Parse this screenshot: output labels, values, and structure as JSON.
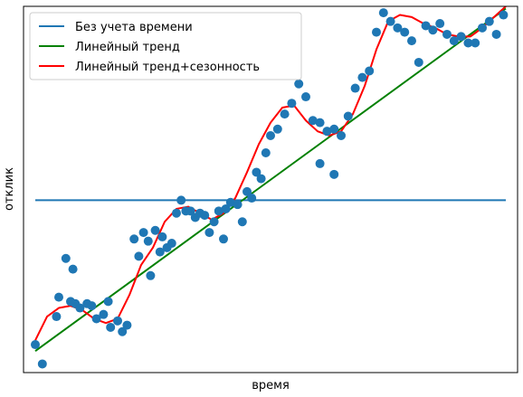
{
  "chart_data": {
    "type": "scatter",
    "xlabel": "время",
    "ylabel": "отклик",
    "xlim": [
      -0.5,
      20.5
    ],
    "ylim": [
      -1,
      16
    ],
    "xticks": false,
    "yticks": false,
    "legend_placement": "top-left",
    "colors": {
      "points": "#1f77b4",
      "baseline": "#1f77b4",
      "linear": "#008000",
      "seasonal": "#ff0000"
    },
    "series": [
      {
        "name": "Без учета времени",
        "type": "line",
        "x": [
          0,
          20
        ],
        "y": [
          7.0,
          7.0
        ]
      },
      {
        "name": "Линейный тренд",
        "type": "line",
        "x": [
          0,
          20
        ],
        "y": [
          0.0,
          15.9
        ]
      },
      {
        "name": "Линейный тренд+сезонность",
        "type": "line",
        "x": [
          0.0,
          0.5,
          1.0,
          1.5,
          2.0,
          2.5,
          3.0,
          3.5,
          4.0,
          4.5,
          5.0,
          5.5,
          6.0,
          6.5,
          7.0,
          7.5,
          8.0,
          8.5,
          9.0,
          9.5,
          10.0,
          10.5,
          11.0,
          11.5,
          12.0,
          12.5,
          13.0,
          13.5,
          14.0,
          14.5,
          15.0,
          15.5,
          16.0,
          16.5,
          17.0,
          17.5,
          18.0,
          18.5,
          19.0,
          19.5,
          20.0
        ],
        "y": [
          0.5,
          1.6,
          2.0,
          2.1,
          1.9,
          1.5,
          1.3,
          1.5,
          2.6,
          4.0,
          4.8,
          6.0,
          6.6,
          6.7,
          6.4,
          6.1,
          6.4,
          7.1,
          8.3,
          9.6,
          10.6,
          11.3,
          11.4,
          10.7,
          10.2,
          10.0,
          10.2,
          11.0,
          12.3,
          14.0,
          15.3,
          15.6,
          15.5,
          15.2,
          15.0,
          14.7,
          14.6,
          14.6,
          15.0,
          15.5,
          16.0
        ]
      },
      {
        "name": "",
        "type": "scatter",
        "x": [
          0.0,
          0.3,
          0.9,
          1.0,
          1.3,
          1.6,
          1.7,
          1.5,
          1.9,
          2.2,
          2.4,
          2.6,
          2.9,
          3.1,
          3.2,
          3.5,
          3.7,
          3.9,
          4.2,
          4.4,
          4.6,
          4.8,
          4.9,
          5.1,
          5.4,
          5.6,
          5.8,
          6.0,
          6.2,
          6.4,
          6.6,
          6.8,
          7.0,
          7.2,
          7.4,
          7.6,
          7.8,
          8.0,
          8.1,
          8.3,
          8.6,
          8.8,
          9.0,
          9.2,
          9.4,
          9.6,
          9.8,
          10.0,
          10.3,
          10.6,
          10.9,
          11.2,
          11.5,
          11.8,
          12.1,
          12.4,
          12.7,
          13.0,
          13.3,
          13.6,
          13.9,
          14.2,
          14.5,
          14.8,
          15.1,
          15.4,
          15.7,
          16.0,
          16.3,
          16.6,
          16.9,
          17.2,
          17.5,
          17.8,
          18.1,
          18.4,
          18.7,
          19.0,
          19.3,
          19.6,
          19.9,
          12.1,
          12.7,
          5.3
        ],
        "y": [
          0.3,
          -0.6,
          1.6,
          2.5,
          4.3,
          3.8,
          2.2,
          2.3,
          2.0,
          2.2,
          2.1,
          1.5,
          1.7,
          2.3,
          1.1,
          1.4,
          0.9,
          1.2,
          5.2,
          4.4,
          5.5,
          5.1,
          3.5,
          5.6,
          5.3,
          4.8,
          5.0,
          6.4,
          7.0,
          6.5,
          6.5,
          6.2,
          6.4,
          6.3,
          5.5,
          6.0,
          6.5,
          5.2,
          6.6,
          6.9,
          6.8,
          6.0,
          7.4,
          7.1,
          8.3,
          8.0,
          9.2,
          10.0,
          10.3,
          11.0,
          11.5,
          12.4,
          11.8,
          10.7,
          10.6,
          10.2,
          10.3,
          10.0,
          10.9,
          12.2,
          12.7,
          13.0,
          14.8,
          15.7,
          15.3,
          15.0,
          14.8,
          14.4,
          13.4,
          15.1,
          14.9,
          15.2,
          14.7,
          14.4,
          14.6,
          14.3,
          14.3,
          15.0,
          15.3,
          14.7,
          15.6,
          8.7,
          8.2,
          4.6
        ]
      }
    ]
  }
}
